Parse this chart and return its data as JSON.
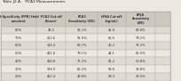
{
  "title": "Table J2 A.   PCA3 Measurements",
  "col_headers": [
    "1-Specificity (FPR) Held\nconstant",
    "PCA3 Cut-off\n(Score)",
    "PCA3\nSensitivity (OR)",
    "tPSA Cut-off\n(ng/mL)",
    "tPSA\nSensitivity\n(OR)",
    ""
  ],
  "rows": [
    [
      "80%",
      "49.3",
      "95.1%",
      "41.8",
      "88.8%",
      ""
    ],
    [
      "70%",
      "212.6",
      "91.0%",
      "62.5",
      "79.1%",
      ""
    ],
    [
      "60%",
      "316.4",
      "88.7%",
      "40.2",
      "72.2%",
      ""
    ],
    [
      "50%",
      "421.0",
      "79.1%",
      "44.1",
      "60.5%",
      ""
    ],
    [
      "40%",
      "426.8",
      "71.2%",
      "45.2",
      "50.8%",
      ""
    ],
    [
      "30%",
      "334.9",
      "61.2%",
      "88.8",
      "39.8%",
      ""
    ],
    [
      "20%",
      "467.4",
      "48.8%",
      "99.3",
      "28.0%",
      ""
    ]
  ],
  "bg_color": "#ede8e0",
  "header_bg": "#cdc8be",
  "alt_row_bg": "#e0dbd2",
  "row_bg": "#ede8e0",
  "border_color": "#aaaaaa",
  "text_color": "#333333",
  "title_color": "#222222",
  "title_fontsize": 3.2,
  "header_fontsize": 2.4,
  "cell_fontsize": 2.6
}
